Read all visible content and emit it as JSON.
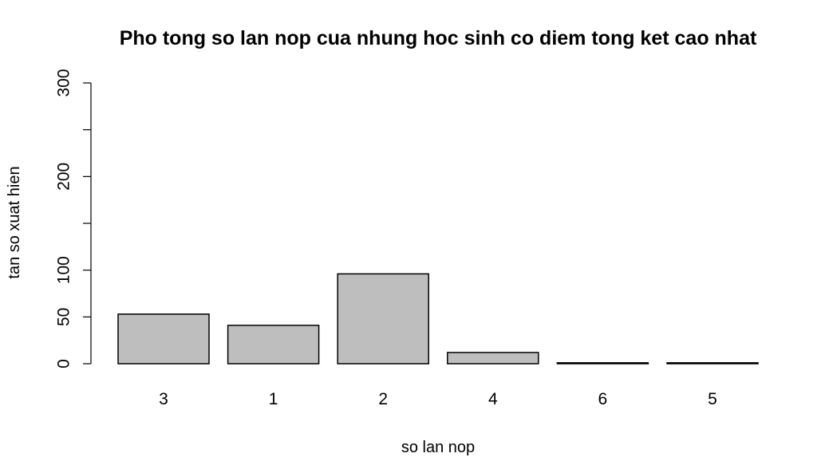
{
  "chart_data": {
    "type": "bar",
    "title": "Pho tong so lan nop cua nhung hoc sinh co diem tong ket cao nhat",
    "xlabel": "so lan nop",
    "ylabel": "tan so xuat hien",
    "categories": [
      "3",
      "1",
      "2",
      "4",
      "6",
      "5"
    ],
    "values": [
      53,
      41,
      96,
      12,
      1,
      1
    ],
    "ylim": [
      0,
      300
    ],
    "yticks": [
      0,
      50,
      100,
      150,
      200,
      250,
      300
    ],
    "ytick_labels": [
      "0",
      "50",
      "100",
      "",
      "200",
      "",
      "300"
    ],
    "grid": false,
    "legend": "none",
    "colors": {
      "bar_fill": "#bebebe",
      "bar_stroke": "#000000"
    }
  }
}
